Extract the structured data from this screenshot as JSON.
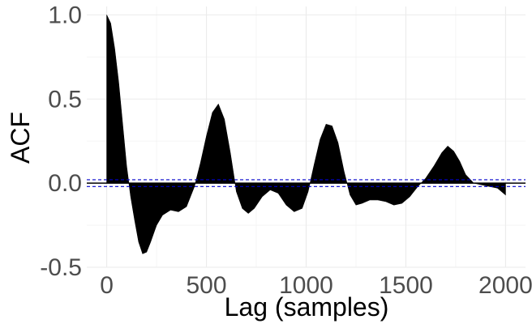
{
  "chart_data": {
    "type": "area",
    "title": "",
    "xlabel": "Lag (samples)",
    "ylabel": "ACF",
    "xlim": [
      -100,
      2100
    ],
    "ylim": [
      -0.5,
      1.05
    ],
    "xticks": [
      0,
      500,
      1000,
      1500,
      2000
    ],
    "xtick_labels": [
      "0",
      "500",
      "1000",
      "1500",
      "2000"
    ],
    "yticks": [
      -0.5,
      0.0,
      0.5,
      1.0
    ],
    "ytick_labels": [
      "-0.5",
      "0.0",
      "0.5",
      "1.0"
    ],
    "grid": true,
    "fill_color": "#000000",
    "confidence_bound": 0.02,
    "confidence_color": "#0000cc",
    "series": [
      {
        "x": [
          0,
          20,
          40,
          60,
          80,
          100,
          120,
          140,
          160,
          180,
          200,
          220,
          250,
          280,
          320,
          360,
          400,
          440,
          470,
          500,
          530,
          560,
          590,
          620,
          650,
          680,
          710,
          740,
          780,
          820,
          860,
          900,
          940,
          980,
          1010,
          1040,
          1070,
          1100,
          1130,
          1160,
          1190,
          1220,
          1250,
          1280,
          1320,
          1360,
          1400,
          1440,
          1480,
          1520,
          1560,
          1600,
          1640,
          1680,
          1710,
          1740,
          1770,
          1800,
          1840,
          1880,
          1920,
          1960,
          2000
        ],
        "y": [
          1.0,
          0.95,
          0.8,
          0.6,
          0.35,
          0.1,
          -0.08,
          -0.22,
          -0.35,
          -0.42,
          -0.41,
          -0.35,
          -0.25,
          -0.19,
          -0.16,
          -0.17,
          -0.14,
          -0.02,
          0.12,
          0.28,
          0.42,
          0.47,
          0.38,
          0.18,
          -0.05,
          -0.15,
          -0.18,
          -0.15,
          -0.08,
          -0.04,
          -0.06,
          -0.13,
          -0.17,
          -0.15,
          -0.05,
          0.11,
          0.26,
          0.35,
          0.34,
          0.24,
          0.07,
          -0.07,
          -0.13,
          -0.12,
          -0.1,
          -0.1,
          -0.11,
          -0.13,
          -0.12,
          -0.08,
          -0.02,
          0.03,
          0.1,
          0.18,
          0.22,
          0.19,
          0.13,
          0.05,
          0.0,
          -0.01,
          -0.02,
          -0.03,
          -0.07
        ]
      }
    ]
  }
}
